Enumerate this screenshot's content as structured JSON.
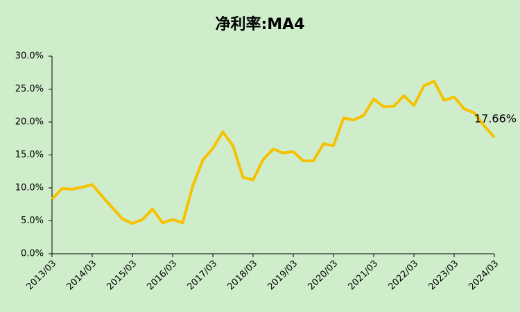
{
  "chart_data": {
    "type": "line",
    "title": "净利率:MA4",
    "categories": [
      "2013/03",
      null,
      null,
      null,
      "2014/03",
      null,
      null,
      null,
      "2015/03",
      null,
      null,
      null,
      "2016/03",
      null,
      null,
      null,
      "2017/03",
      null,
      null,
      null,
      "2018/03",
      null,
      null,
      null,
      "2019/03",
      null,
      null,
      null,
      "2020/03",
      null,
      null,
      null,
      "2021/03",
      null,
      null,
      null,
      "2022/03",
      null,
      null,
      null,
      "2023/03",
      null,
      null,
      null,
      "2024/03"
    ],
    "values": [
      8.3,
      9.9,
      9.8,
      10.1,
      10.5,
      8.7,
      7.0,
      5.3,
      4.6,
      5.2,
      6.8,
      4.7,
      5.2,
      4.7,
      10.3,
      14.2,
      16.0,
      18.5,
      16.4,
      11.6,
      11.2,
      14.3,
      15.9,
      15.3,
      15.5,
      14.1,
      14.1,
      16.7,
      16.4,
      20.6,
      20.3,
      21.0,
      23.5,
      22.3,
      22.4,
      24.0,
      22.5,
      25.5,
      26.2,
      23.3,
      23.8,
      22.0,
      21.4,
      19.4,
      17.66
    ],
    "value_labels": [
      null,
      null,
      null,
      null,
      null,
      null,
      null,
      null,
      null,
      null,
      null,
      null,
      null,
      null,
      null,
      null,
      null,
      null,
      null,
      null,
      null,
      null,
      null,
      null,
      null,
      null,
      null,
      null,
      null,
      null,
      null,
      null,
      null,
      null,
      null,
      null,
      null,
      null,
      null,
      null,
      null,
      null,
      null,
      null,
      "17.66%"
    ],
    "color": "#f7c100",
    "ylim": [
      0,
      30
    ],
    "yticks": [
      {
        "value": 0,
        "label": "0.0%"
      },
      {
        "value": 5,
        "label": "5.0%"
      },
      {
        "value": 10,
        "label": "10.0%"
      },
      {
        "value": 15,
        "label": "15.0%"
      },
      {
        "value": 20,
        "label": "20.0%"
      },
      {
        "value": 25,
        "label": "25.0%"
      },
      {
        "value": 30,
        "label": "30.0%"
      }
    ],
    "grid": false
  }
}
